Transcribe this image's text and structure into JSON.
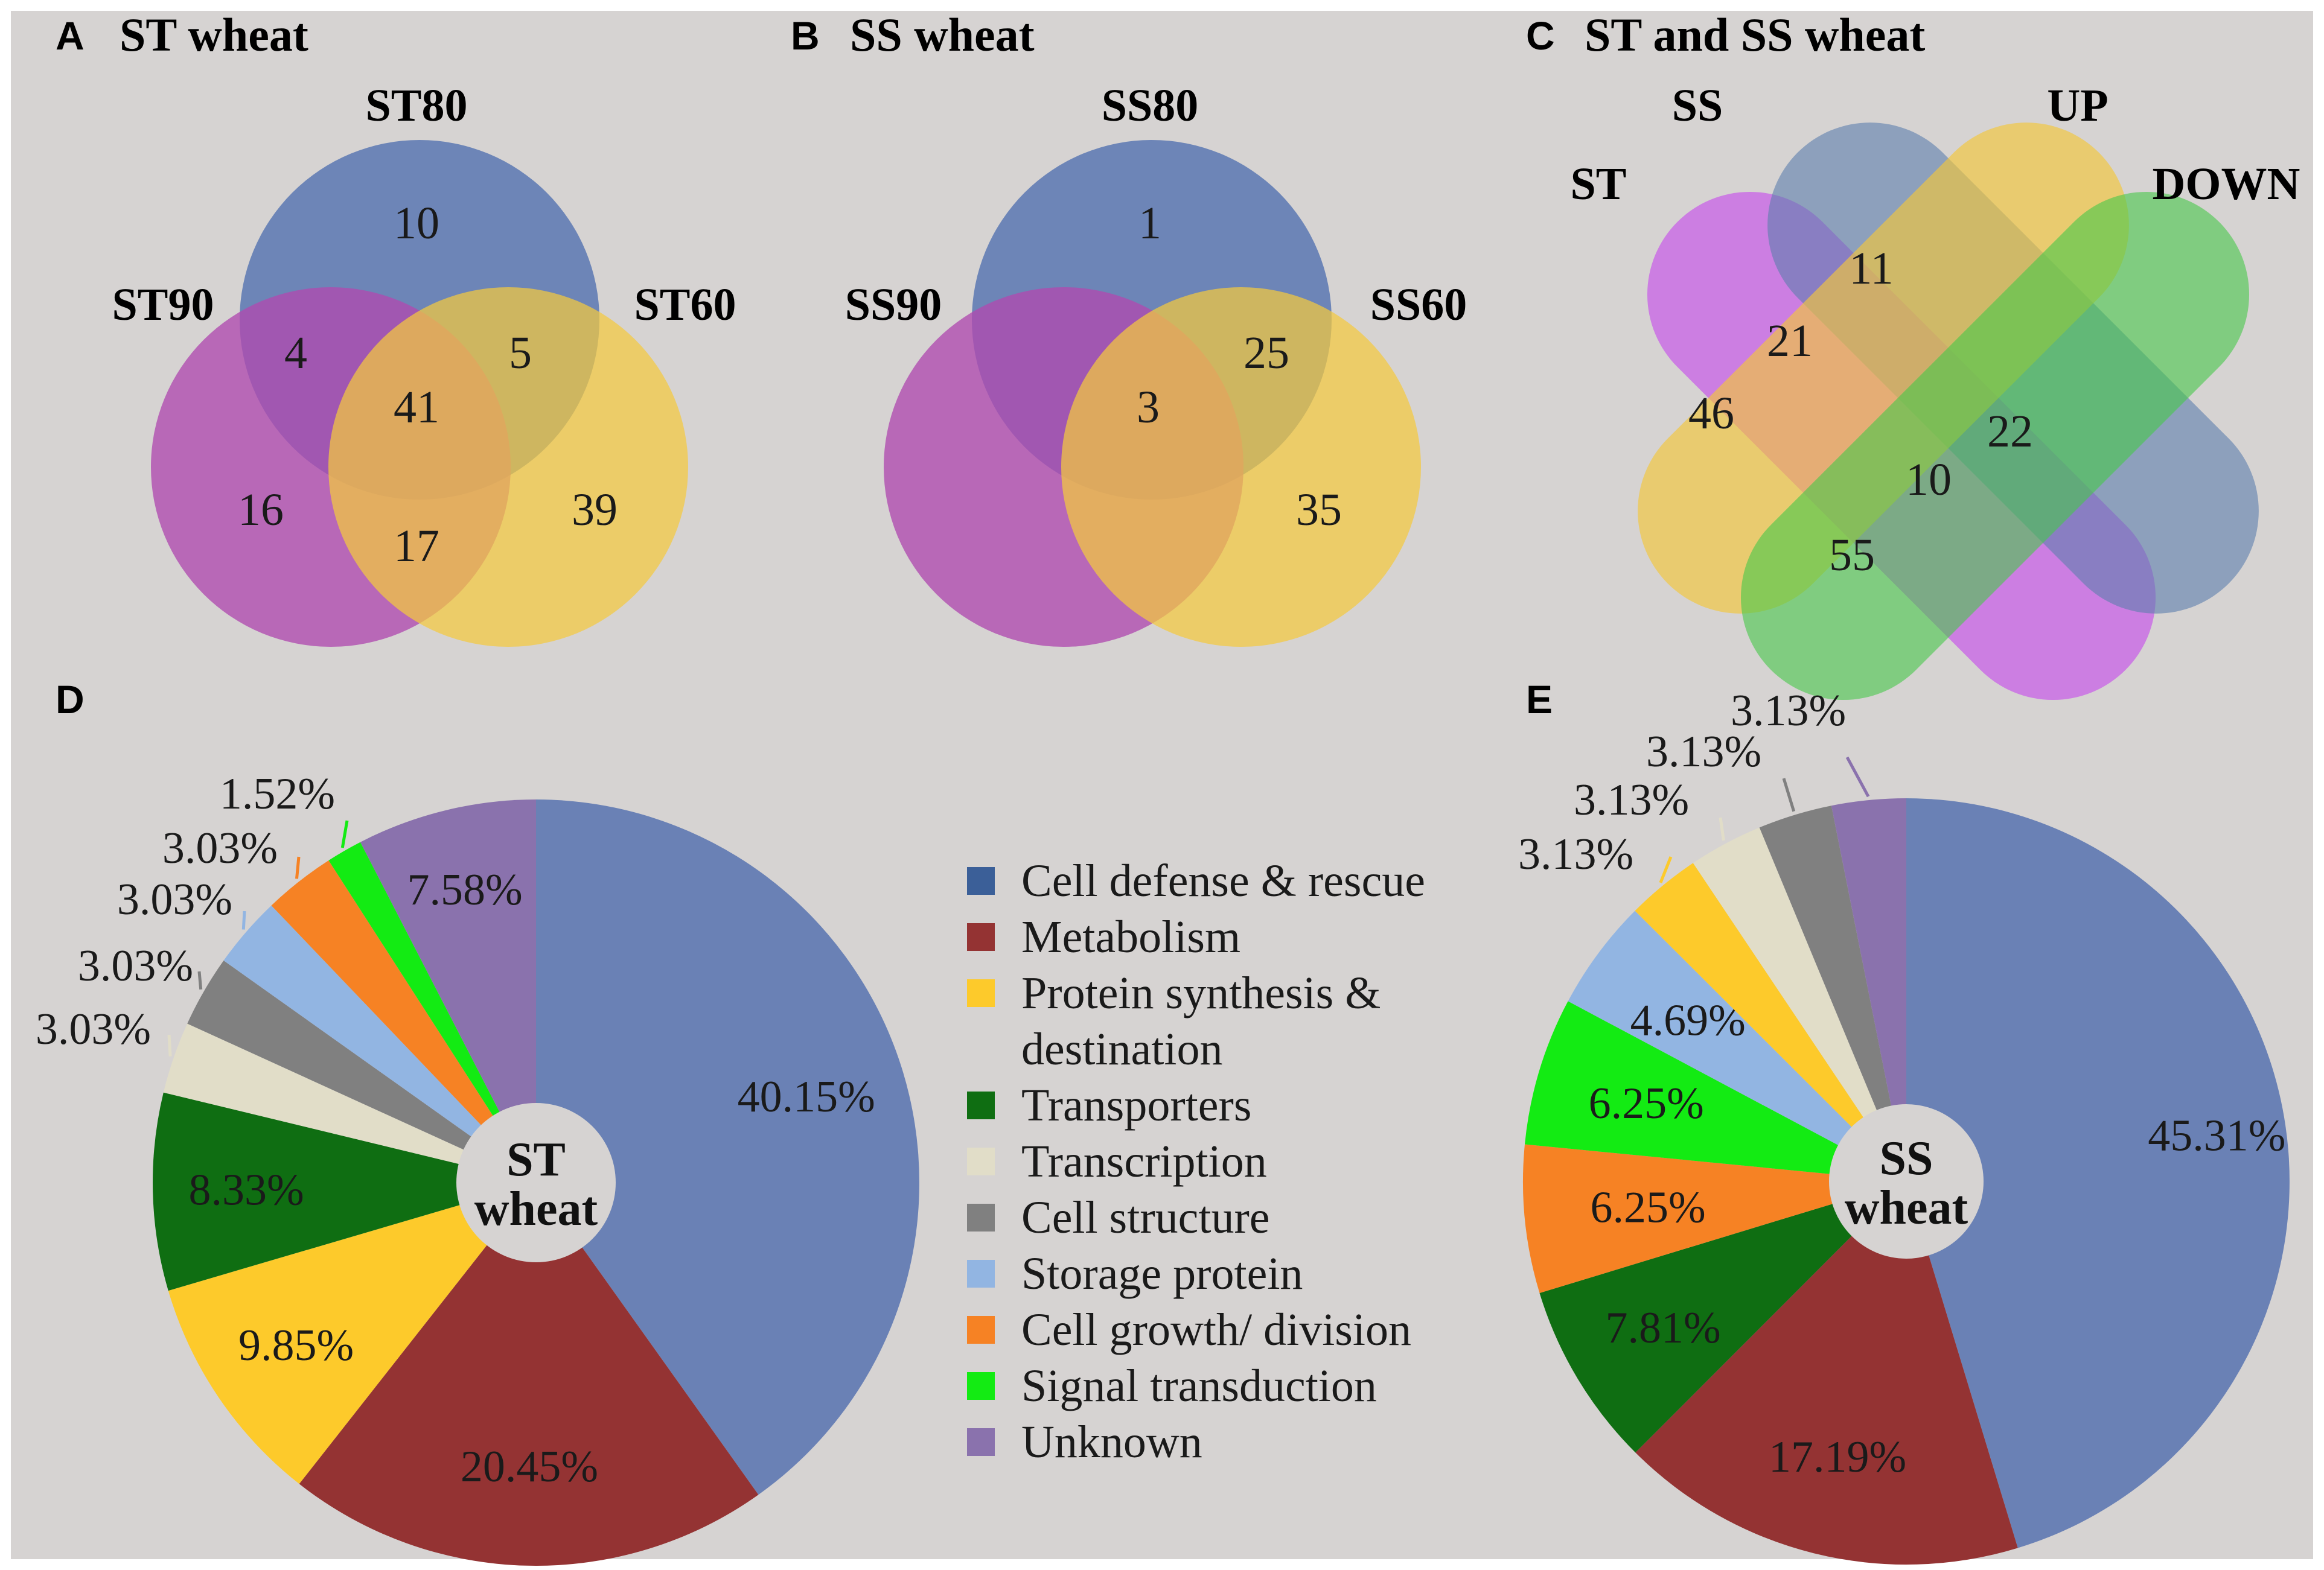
{
  "colors": {
    "background": "#d6d3d2",
    "blue": "#4f6faf",
    "purple": "#b04ab0",
    "yellow": "#f4c93f",
    "venn_c_st": "#c75de8",
    "venn_c_ss": "#5b7fae",
    "venn_c_up": "#f3c63a",
    "venn_c_down": "#46c84a"
  },
  "venn_a": {
    "letter": "A",
    "title": "ST wheat",
    "sets": [
      "ST80",
      "ST90",
      "ST60"
    ],
    "regions": {
      "only_1": "10",
      "only_2": "16",
      "only_3": "39",
      "r12": "4",
      "r13": "5",
      "r23": "17",
      "r123": "41"
    }
  },
  "venn_b": {
    "letter": "B",
    "title": "SS wheat",
    "sets": [
      "SS80",
      "SS90",
      "SS60"
    ],
    "regions": {
      "only_1": "1",
      "r13": "25",
      "r123": "3",
      "only_3": "35"
    }
  },
  "venn_c": {
    "letter": "C",
    "title": "ST and SS wheat",
    "sets": [
      "ST",
      "SS",
      "UP",
      "DOWN"
    ],
    "regions": [
      "11",
      "21",
      "46",
      "22",
      "10",
      "55"
    ]
  },
  "chart_data": [
    {
      "type": "pie",
      "panel": "D",
      "center_label": [
        "ST",
        "wheat"
      ],
      "categories": [
        "Cell defense & rescue",
        "Metabolism",
        "Protein synthesis & destination",
        "Transporters",
        "Transcription",
        "Cell structure",
        "Storage protein",
        "Cell growth/ division",
        "Signal transduction",
        "Unknown"
      ],
      "values": [
        40.15,
        20.45,
        9.85,
        8.33,
        3.03,
        3.03,
        3.03,
        3.03,
        1.52,
        7.58
      ],
      "labels": [
        "40.15%",
        "20.45%",
        "9.85%",
        "8.33%",
        "3.03%",
        "3.03%",
        "3.03%",
        "3.03%",
        "1.52%",
        "7.58%"
      ],
      "colors": [
        "#6a81b5",
        "#943333",
        "#fdca2b",
        "#0f6e12",
        "#e1ddc8",
        "#808080",
        "#92b5e2",
        "#f68224",
        "#13eb13",
        "#8a72ad"
      ],
      "start": "12 o'clock",
      "direction": "clockwise"
    },
    {
      "type": "pie",
      "panel": "E",
      "center_label": [
        "SS",
        "wheat"
      ],
      "categories": [
        "Cell defense & rescue",
        "Metabolism",
        "Transporters",
        "Cell growth/ division",
        "Signal transduction",
        "Storage protein",
        "Protein synthesis & destination",
        "Transcription",
        "Cell structure",
        "Unknown"
      ],
      "values": [
        45.31,
        17.19,
        7.81,
        6.25,
        6.25,
        4.69,
        3.13,
        3.13,
        3.13,
        3.13
      ],
      "labels": [
        "45.31%",
        "17.19%",
        "7.81%",
        "6.25%",
        "6.25%",
        "4.69%",
        "3.13%",
        "3.13%",
        "3.13%",
        "3.13%"
      ],
      "colors": [
        "#6a81b5",
        "#943333",
        "#0f6e12",
        "#f68224",
        "#13eb13",
        "#92b5e2",
        "#fdca2b",
        "#e1ddc8",
        "#808080",
        "#8a72ad"
      ],
      "start": "12 o'clock",
      "direction": "clockwise"
    }
  ],
  "panel_d_letter": "D",
  "panel_e_letter": "E",
  "legend": {
    "items": [
      {
        "label": "Cell defense & rescue",
        "color": "#3b5f98"
      },
      {
        "label": "Metabolism",
        "color": "#943333"
      },
      {
        "label": "Protein synthesis &",
        "label2": "destination",
        "color": "#fdca2b"
      },
      {
        "label": "Transporters",
        "color": "#0f6e12"
      },
      {
        "label": "Transcription",
        "color": "#e1ddc8"
      },
      {
        "label": "Cell structure",
        "color": "#808080"
      },
      {
        "label": "Storage protein",
        "color": "#92b5e2"
      },
      {
        "label": "Cell growth/ division",
        "color": "#f68224"
      },
      {
        "label": "Signal transduction",
        "color": "#13eb13"
      },
      {
        "label": "Unknown",
        "color": "#8a72ad"
      }
    ]
  }
}
